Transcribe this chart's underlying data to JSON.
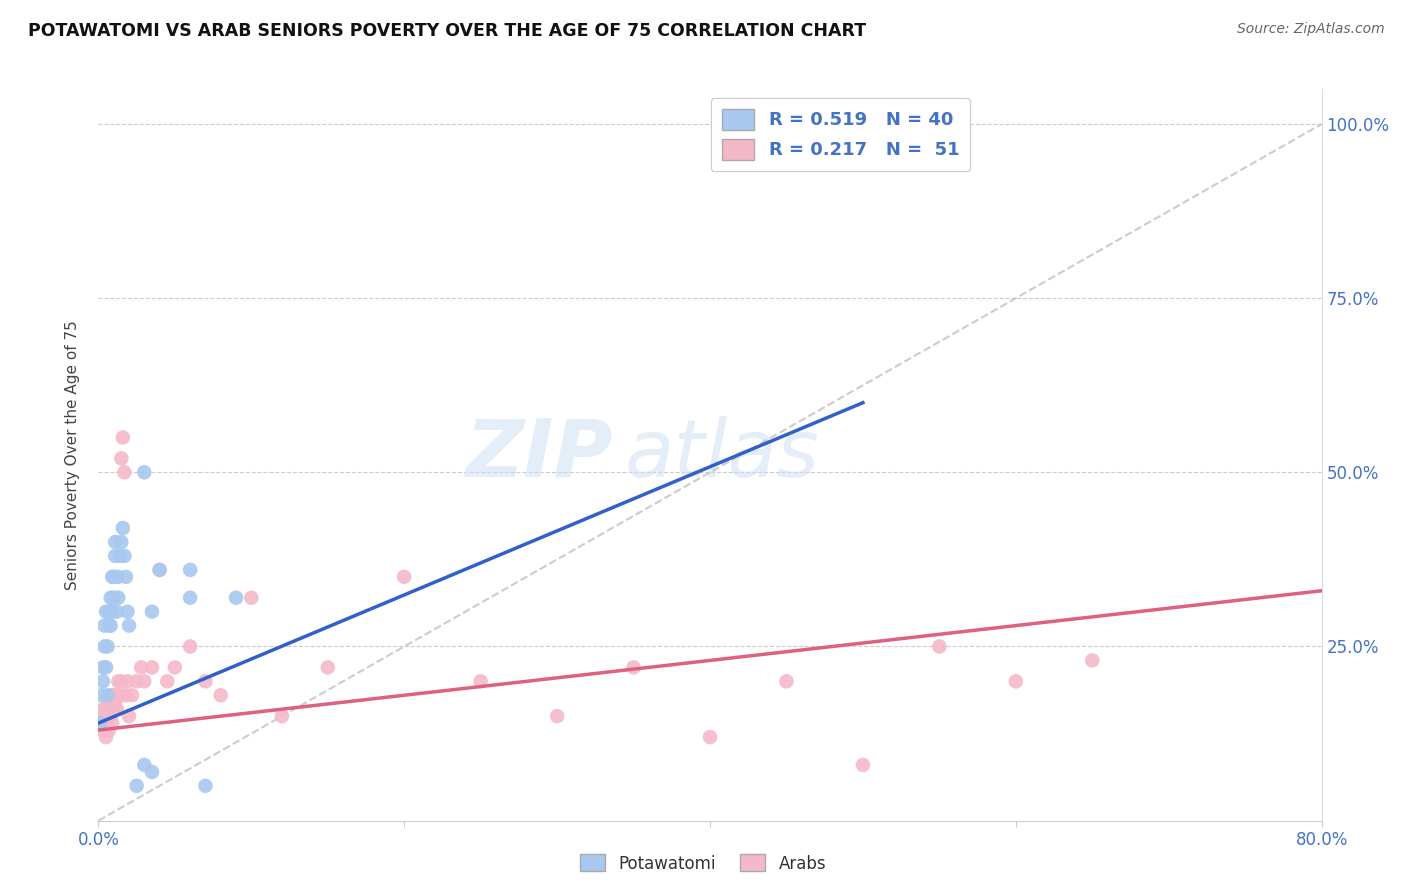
{
  "title": "POTAWATOMI VS ARAB SENIORS POVERTY OVER THE AGE OF 75 CORRELATION CHART",
  "source": "Source: ZipAtlas.com",
  "ylabel": "Seniors Poverty Over the Age of 75",
  "xlim": [
    0.0,
    0.8
  ],
  "ylim": [
    0.0,
    1.05
  ],
  "potawatomi_color": "#a8c8f0",
  "arab_color": "#f5b8c8",
  "potawatomi_line_color": "#3060c8",
  "arab_line_color": "#e06080",
  "diagonal_color": "#c0c0c0",
  "R_potawatomi": 0.519,
  "N_potawatomi": 40,
  "R_arab": 0.217,
  "N_arab": 51,
  "watermark_zip": "ZIP",
  "watermark_atlas": "atlas",
  "pot_line_x0": 0.0,
  "pot_line_y0": 0.14,
  "pot_line_x1": 0.5,
  "pot_line_y1": 0.6,
  "arab_line_x0": 0.0,
  "arab_line_y0": 0.13,
  "arab_line_x1": 0.8,
  "arab_line_y1": 0.33,
  "potawatomi_x": [
    0.001,
    0.002,
    0.003,
    0.003,
    0.004,
    0.004,
    0.005,
    0.005,
    0.006,
    0.006,
    0.007,
    0.007,
    0.008,
    0.008,
    0.009,
    0.009,
    0.01,
    0.01,
    0.011,
    0.011,
    0.012,
    0.013,
    0.013,
    0.014,
    0.015,
    0.016,
    0.017,
    0.018,
    0.019,
    0.02,
    0.025,
    0.03,
    0.035,
    0.04,
    0.06,
    0.07,
    0.03,
    0.035,
    0.06,
    0.09
  ],
  "potawatomi_y": [
    0.14,
    0.18,
    0.2,
    0.22,
    0.25,
    0.28,
    0.22,
    0.3,
    0.18,
    0.25,
    0.28,
    0.3,
    0.32,
    0.28,
    0.3,
    0.35,
    0.32,
    0.35,
    0.38,
    0.4,
    0.3,
    0.32,
    0.35,
    0.38,
    0.4,
    0.42,
    0.38,
    0.35,
    0.3,
    0.28,
    0.05,
    0.08,
    0.07,
    0.36,
    0.32,
    0.05,
    0.5,
    0.3,
    0.36,
    0.32
  ],
  "arab_x": [
    0.001,
    0.002,
    0.003,
    0.003,
    0.004,
    0.005,
    0.005,
    0.006,
    0.007,
    0.007,
    0.008,
    0.008,
    0.009,
    0.01,
    0.01,
    0.011,
    0.012,
    0.013,
    0.013,
    0.014,
    0.015,
    0.015,
    0.016,
    0.017,
    0.018,
    0.019,
    0.02,
    0.022,
    0.025,
    0.028,
    0.03,
    0.035,
    0.04,
    0.045,
    0.05,
    0.06,
    0.07,
    0.08,
    0.1,
    0.12,
    0.15,
    0.2,
    0.25,
    0.3,
    0.35,
    0.4,
    0.45,
    0.5,
    0.55,
    0.6,
    0.65
  ],
  "arab_y": [
    0.14,
    0.15,
    0.13,
    0.16,
    0.14,
    0.12,
    0.16,
    0.15,
    0.13,
    0.17,
    0.15,
    0.18,
    0.14,
    0.16,
    0.18,
    0.17,
    0.16,
    0.18,
    0.2,
    0.18,
    0.2,
    0.52,
    0.55,
    0.5,
    0.18,
    0.2,
    0.15,
    0.18,
    0.2,
    0.22,
    0.2,
    0.22,
    0.36,
    0.2,
    0.22,
    0.25,
    0.2,
    0.18,
    0.32,
    0.15,
    0.22,
    0.35,
    0.2,
    0.15,
    0.22,
    0.12,
    0.2,
    0.08,
    0.25,
    0.2,
    0.23
  ]
}
